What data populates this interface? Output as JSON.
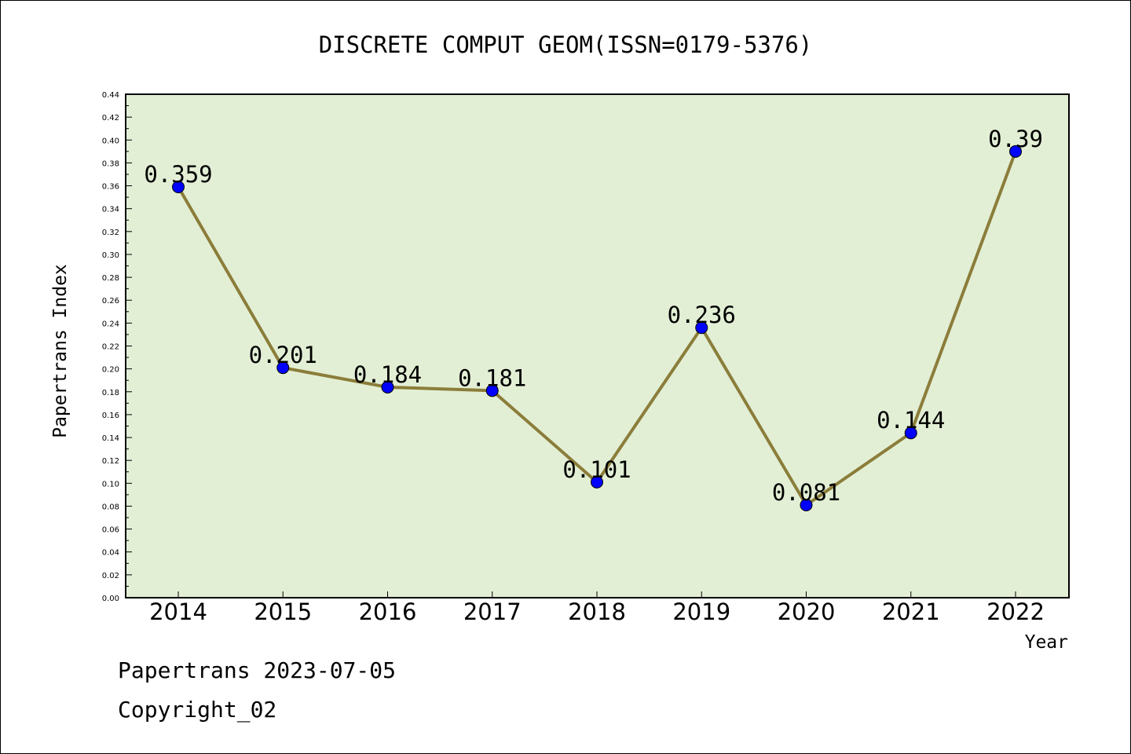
{
  "chart_data": {
    "type": "line",
    "title": "DISCRETE COMPUT GEOM(ISSN=0179-5376)",
    "xlabel": "Year",
    "ylabel": "Papertrans Index",
    "categories": [
      "2014",
      "2015",
      "2016",
      "2017",
      "2018",
      "2019",
      "2020",
      "2021",
      "2022"
    ],
    "values": [
      0.359,
      0.201,
      0.184,
      0.181,
      0.101,
      0.236,
      0.081,
      0.144,
      0.39
    ],
    "data_labels": [
      "0.359",
      "0.201",
      "0.184",
      "0.181",
      "0.101",
      "0.236",
      "0.081",
      "0.144",
      "0.39"
    ],
    "ylim": [
      0,
      0.44
    ],
    "y_ticks": [
      "0.00",
      "0.02",
      "0.04",
      "0.06",
      "0.08",
      "0.10",
      "0.12",
      "0.14",
      "0.16",
      "0.18",
      "0.20",
      "0.22",
      "0.24",
      "0.26",
      "0.28",
      "0.30",
      "0.32",
      "0.34",
      "0.36",
      "0.38",
      "0.40",
      "0.42",
      "0.44"
    ],
    "grid": false,
    "colors": {
      "plot_background": "#e2efd5",
      "line": "#8b7d3a",
      "marker": "#0000ff"
    }
  },
  "footer": {
    "date_line": "Papertrans 2023-07-05",
    "copyright": "Copyright_02"
  }
}
